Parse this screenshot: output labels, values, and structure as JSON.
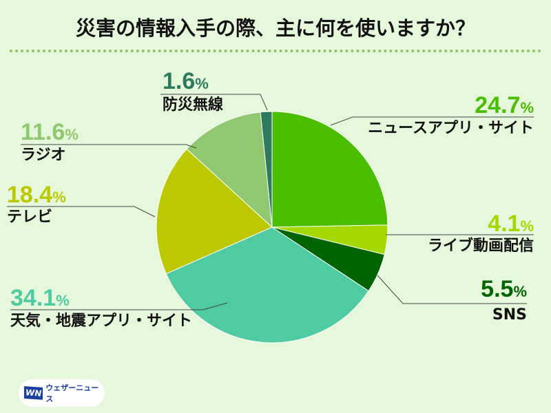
{
  "title": "災害の情報入手の際、主に何を使いますか？",
  "chart_data": {
    "type": "pie",
    "title": "災害の情報入手の際、主に何を使いますか？",
    "unit": "%",
    "start": "12 o'clock, clockwise",
    "slices": [
      {
        "label": "ニュースアプリ・サイト",
        "value": 24.7,
        "pct": "24.7",
        "color": "#4cbe00"
      },
      {
        "label": "ライブ動画配信",
        "value": 4.1,
        "pct": "4.1",
        "color": "#a3d900"
      },
      {
        "label": "SNS",
        "value": 5.5,
        "pct": "5.5",
        "color": "#006400"
      },
      {
        "label": "天気・地震アプリ・サイト",
        "value": 34.1,
        "pct": "34.1",
        "color": "#4ecba0"
      },
      {
        "label": "テレビ",
        "value": 18.4,
        "pct": "18.4",
        "color": "#bcc800"
      },
      {
        "label": "ラジオ",
        "value": 11.6,
        "pct": "11.6",
        "color": "#90c870"
      },
      {
        "label": "防災無線",
        "value": 1.6,
        "pct": "1.6",
        "color": "#2e7a5e"
      }
    ]
  },
  "pct_sign": "%",
  "logo": {
    "mark": "WN",
    "text": "ウェザーニュース"
  }
}
